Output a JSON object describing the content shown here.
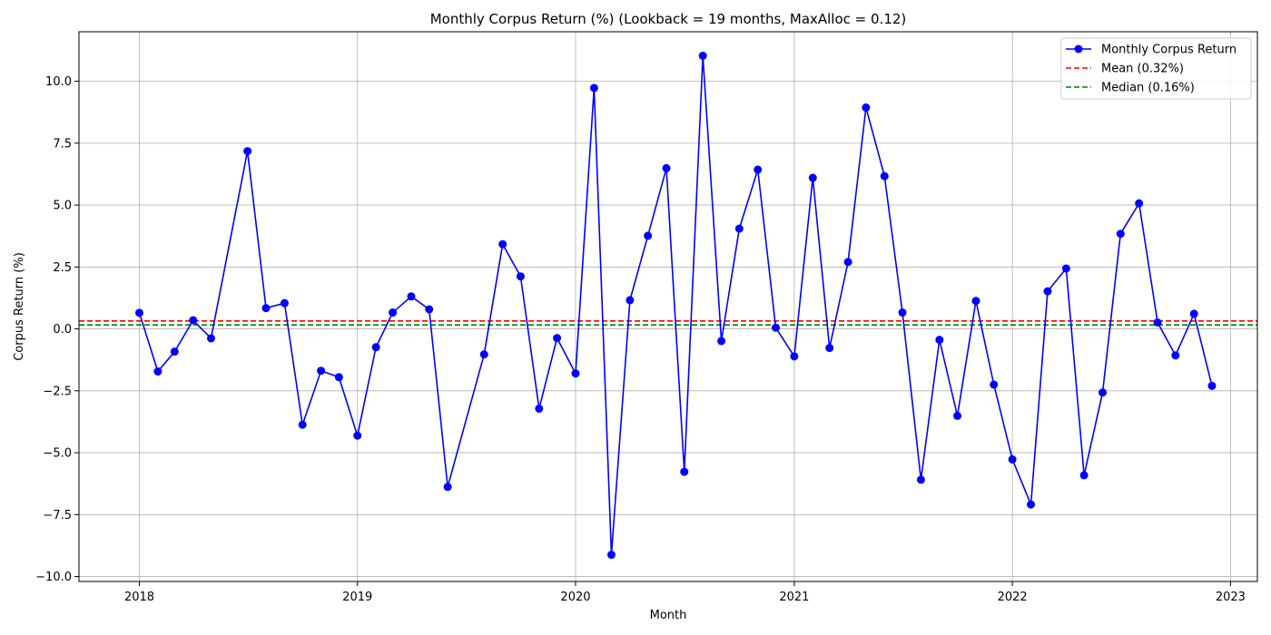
{
  "chart_data": {
    "type": "line",
    "title": "Monthly Corpus Return (%) (Lookback = 19 months, MaxAlloc = 0.12)",
    "xlabel": "Month",
    "ylabel": "Corpus Return (%)",
    "xlim": [
      "2017-09-22",
      "2023-02-15"
    ],
    "ylim": [
      -10.2,
      12.0
    ],
    "x_ticks": [
      "2018",
      "2019",
      "2020",
      "2021",
      "2022",
      "2023"
    ],
    "y_ticks": [
      -10.0,
      -7.5,
      -5.0,
      -2.5,
      0.0,
      2.5,
      5.0,
      7.5,
      10.0
    ],
    "y_tick_labels": [
      "−10.0",
      "−7.5",
      "−5.0",
      "−2.5",
      "0.0",
      "2.5",
      "5.0",
      "7.5",
      "10.0"
    ],
    "grid": true,
    "legend_position": "top-right",
    "series": [
      {
        "name": "Monthly Corpus Return",
        "color": "#0000ff",
        "style": "line-with-circle-markers",
        "points": [
          {
            "x": "2018-01-01",
            "y": 0.65
          },
          {
            "x": "2018-02-01",
            "y": -1.72
          },
          {
            "x": "2018-03-01",
            "y": -0.92
          },
          {
            "x": "2018-04-01",
            "y": 0.35
          },
          {
            "x": "2018-05-01",
            "y": -0.38
          },
          {
            "x": "2018-07-01",
            "y": 7.18
          },
          {
            "x": "2018-08-01",
            "y": 0.84
          },
          {
            "x": "2018-09-01",
            "y": 1.04
          },
          {
            "x": "2018-10-01",
            "y": -3.87
          },
          {
            "x": "2018-11-01",
            "y": -1.69
          },
          {
            "x": "2018-12-01",
            "y": -1.95
          },
          {
            "x": "2019-01-01",
            "y": -4.31
          },
          {
            "x": "2019-02-01",
            "y": -0.74
          },
          {
            "x": "2019-03-01",
            "y": 0.66
          },
          {
            "x": "2019-04-01",
            "y": 1.31
          },
          {
            "x": "2019-05-01",
            "y": 0.79
          },
          {
            "x": "2019-06-01",
            "y": -6.38
          },
          {
            "x": "2019-08-01",
            "y": -1.03
          },
          {
            "x": "2019-09-01",
            "y": 3.42
          },
          {
            "x": "2019-10-01",
            "y": 2.12
          },
          {
            "x": "2019-11-01",
            "y": -3.22
          },
          {
            "x": "2019-12-01",
            "y": -0.37
          },
          {
            "x": "2020-01-01",
            "y": -1.8
          },
          {
            "x": "2020-02-01",
            "y": 9.73
          },
          {
            "x": "2020-03-01",
            "y": -9.12
          },
          {
            "x": "2020-04-01",
            "y": 1.16
          },
          {
            "x": "2020-05-01",
            "y": 3.76
          },
          {
            "x": "2020-06-01",
            "y": 6.49
          },
          {
            "x": "2020-07-01",
            "y": -5.77
          },
          {
            "x": "2020-08-01",
            "y": 11.03
          },
          {
            "x": "2020-09-01",
            "y": -0.49
          },
          {
            "x": "2020-10-01",
            "y": 4.05
          },
          {
            "x": "2020-11-01",
            "y": 6.43
          },
          {
            "x": "2020-12-01",
            "y": 0.05
          },
          {
            "x": "2021-01-01",
            "y": -1.11
          },
          {
            "x": "2021-02-01",
            "y": 6.1
          },
          {
            "x": "2021-03-01",
            "y": -0.77
          },
          {
            "x": "2021-04-01",
            "y": 2.7
          },
          {
            "x": "2021-05-01",
            "y": 8.94
          },
          {
            "x": "2021-06-01",
            "y": 6.17
          },
          {
            "x": "2021-07-01",
            "y": 0.66
          },
          {
            "x": "2021-08-01",
            "y": -6.09
          },
          {
            "x": "2021-09-01",
            "y": -0.44
          },
          {
            "x": "2021-10-01",
            "y": -3.51
          },
          {
            "x": "2021-11-01",
            "y": 1.13
          },
          {
            "x": "2021-12-01",
            "y": -2.25
          },
          {
            "x": "2022-01-01",
            "y": -5.27
          },
          {
            "x": "2022-02-01",
            "y": -7.09
          },
          {
            "x": "2022-03-01",
            "y": 1.52
          },
          {
            "x": "2022-04-01",
            "y": 2.44
          },
          {
            "x": "2022-05-01",
            "y": -5.91
          },
          {
            "x": "2022-06-01",
            "y": -2.57
          },
          {
            "x": "2022-07-01",
            "y": 3.84
          },
          {
            "x": "2022-08-01",
            "y": 5.07
          },
          {
            "x": "2022-09-01",
            "y": 0.26
          },
          {
            "x": "2022-10-01",
            "y": -1.07
          },
          {
            "x": "2022-11-01",
            "y": 0.61
          },
          {
            "x": "2022-12-01",
            "y": -2.3
          }
        ]
      },
      {
        "name": "Mean (0.32%)",
        "color": "#ff0000",
        "style": "dashed-horizontal",
        "y": 0.32
      },
      {
        "name": "Median (0.16%)",
        "color": "#008000",
        "style": "dashed-horizontal",
        "y": 0.16
      }
    ]
  }
}
